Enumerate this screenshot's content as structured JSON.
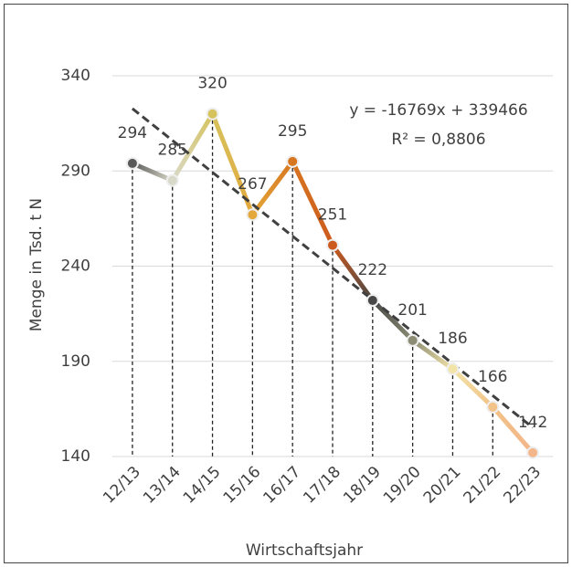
{
  "chart_data": {
    "type": "line",
    "y_label": "Menge in Tsd. t N",
    "x_label": "Wirtschaftsjahr",
    "categories": [
      "12/13",
      "13/14",
      "14/15",
      "15/16",
      "16/17",
      "17/18",
      "18/19",
      "19/20",
      "20/21",
      "21/22",
      "22/23"
    ],
    "values": [
      294,
      285,
      320,
      267,
      295,
      251,
      222,
      201,
      186,
      166,
      142
    ],
    "colors": [
      "#595959",
      "#d9d9c9",
      "#d6c35e",
      "#e3a73a",
      "#d8761f",
      "#cc5a1e",
      "#474747",
      "#8c8c74",
      "#f2e3a6",
      "#f2c288",
      "#f3b68a"
    ],
    "ylim": [
      140,
      340
    ],
    "yticks": [
      140,
      190,
      240,
      290,
      340
    ],
    "grid": true,
    "trendline": {
      "equation": "y = -16769x + 339466",
      "r_squared": "R² = 0,8806",
      "color": "#404040"
    }
  }
}
